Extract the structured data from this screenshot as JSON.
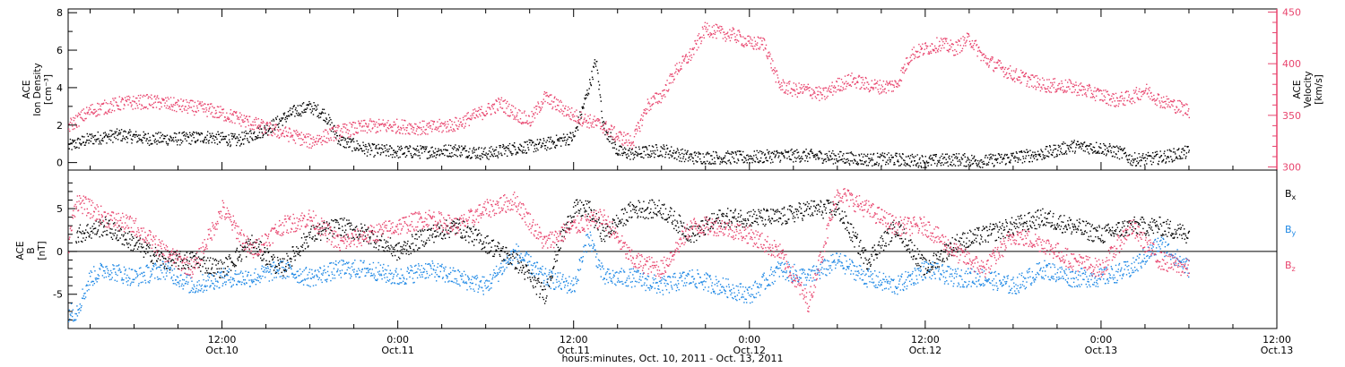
{
  "colors": {
    "density": "#000000",
    "velocity": "#e8456e",
    "bx": "#000000",
    "by": "#1e88e5",
    "bz": "#e8456e",
    "axis": "#000000",
    "right_axis": "#e8456e"
  },
  "footer": {
    "xlabel": "hours:minutes, Oct. 10, 2011 - Oct. 13, 2011"
  },
  "chart_data": [
    {
      "type": "scatter",
      "panel": "top",
      "xlabel": "",
      "xlim_hours": [
        1.5,
        84
      ],
      "x_tick_hours": [
        12,
        24,
        36,
        48,
        60,
        72,
        84
      ],
      "x_tick_labels": [
        {
          "time": "12:00",
          "date": "Oct.10"
        },
        {
          "time": "0:00",
          "date": "Oct.11"
        },
        {
          "time": "12:00",
          "date": "Oct.11"
        },
        {
          "time": "0:00",
          "date": "Oct.12"
        },
        {
          "time": "12:00",
          "date": "Oct.12"
        },
        {
          "time": "0:00",
          "date": "Oct.13"
        },
        {
          "time": "12:00",
          "date": "Oct.13"
        }
      ],
      "ylabel_left": [
        "ACE",
        "Ion Density",
        "[cm⁻³]"
      ],
      "ylim_left": [
        -0.4,
        8.2
      ],
      "yticks_left": [
        "0",
        "2",
        "4",
        "6",
        "8"
      ],
      "ylabel_right": [
        "ACE",
        "Velocity",
        "[km/s]"
      ],
      "ylim_right": [
        297,
        453
      ],
      "yticks_right": [
        "300",
        "350",
        "400",
        "450"
      ],
      "series": [
        {
          "name": "",
          "axis": "left",
          "x_hours": [
            1.5,
            3,
            5,
            7,
            9,
            11,
            13,
            15,
            17,
            18,
            19,
            20,
            22,
            24,
            26,
            28,
            30,
            32,
            34,
            36,
            37,
            37.5,
            38,
            39,
            40,
            42,
            44,
            46,
            48,
            50,
            52,
            54,
            56,
            58,
            60,
            62,
            64,
            66,
            68,
            70,
            72,
            73.5,
            74,
            75,
            76,
            78
          ],
          "values": [
            0.9,
            1.3,
            1.5,
            1.3,
            1.3,
            1.4,
            1.2,
            1.8,
            2.8,
            3.0,
            2.6,
            1.2,
            0.7,
            0.6,
            0.6,
            0.7,
            0.5,
            0.8,
            1.0,
            1.4,
            4.0,
            5.5,
            2.0,
            0.6,
            0.5,
            0.7,
            0.3,
            0.3,
            0.3,
            0.4,
            0.4,
            0.3,
            0.2,
            0.2,
            0.1,
            0.2,
            0.1,
            0.3,
            0.5,
            0.9,
            0.8,
            0.5,
            0.2,
            0.2,
            0.3,
            0.6
          ]
        },
        {
          "name": "",
          "axis": "right",
          "x_hours": [
            1.5,
            3,
            5,
            7,
            9,
            11,
            13,
            15,
            17,
            18,
            20,
            22,
            24,
            26,
            28,
            30,
            31,
            32,
            33,
            34,
            36,
            38,
            39,
            40,
            41,
            42,
            43,
            44,
            45,
            46,
            47,
            48,
            49,
            50,
            51,
            52,
            53,
            54,
            55,
            56,
            57,
            58,
            59,
            60,
            61,
            62,
            63,
            64,
            66,
            68,
            70,
            72,
            73,
            74,
            75,
            76,
            78
          ],
          "values": [
            340,
            355,
            362,
            364,
            360,
            356,
            348,
            338,
            330,
            325,
            335,
            340,
            340,
            338,
            342,
            355,
            362,
            352,
            345,
            368,
            350,
            340,
            330,
            325,
            360,
            370,
            395,
            410,
            435,
            430,
            428,
            420,
            420,
            380,
            375,
            375,
            370,
            380,
            385,
            380,
            378,
            380,
            410,
            415,
            420,
            415,
            425,
            405,
            390,
            380,
            378,
            370,
            365,
            368,
            375,
            365,
            355
          ]
        }
      ]
    },
    {
      "type": "scatter",
      "panel": "bottom",
      "xlim_hours": [
        1.5,
        84
      ],
      "ylabel_left": [
        "ACE",
        "B",
        "[nT]"
      ],
      "ylim_left": [
        -9,
        9.5
      ],
      "yticks_left": [
        "-5",
        "0",
        "5"
      ],
      "legend_position": "right",
      "series": [
        {
          "name": "Bx",
          "name_main": "B",
          "name_sub": "x",
          "x_hours": [
            2,
            4,
            6,
            8,
            10,
            12,
            14,
            16,
            18,
            20,
            22,
            24,
            26,
            28,
            30,
            32,
            34,
            35,
            36,
            37,
            38,
            40,
            42,
            44,
            46,
            48,
            50,
            52,
            54,
            56,
            58,
            60,
            62,
            64,
            66,
            68,
            70,
            72,
            74,
            76,
            78
          ],
          "values": [
            2,
            3,
            1,
            -1,
            -1,
            -2,
            1,
            -2,
            2,
            3,
            2,
            0,
            2,
            3,
            1,
            -1,
            -5,
            1,
            5,
            5,
            2,
            5,
            5,
            2,
            4,
            4,
            4,
            5,
            5,
            -1,
            3,
            -2,
            1,
            2,
            3,
            4,
            3,
            2,
            3,
            3,
            2
          ]
        },
        {
          "name": "By",
          "name_main": "B",
          "name_sub": "y",
          "x_hours": [
            1.5,
            2,
            3,
            4,
            6,
            8,
            10,
            12,
            14,
            16,
            18,
            20,
            22,
            24,
            26,
            28,
            30,
            32,
            34,
            36,
            37,
            38,
            40,
            42,
            44,
            46,
            48,
            50,
            52,
            54,
            56,
            58,
            60,
            62,
            64,
            66,
            68,
            70,
            72,
            74,
            76,
            78
          ],
          "values": [
            -7,
            -7,
            -3,
            -2,
            -3,
            -2,
            -4,
            -3,
            -3,
            -2,
            -3,
            -2,
            -2,
            -3,
            -2,
            -3,
            -4,
            0,
            -3,
            -4,
            2,
            -3,
            -3,
            -4,
            -3,
            -4,
            -5,
            -2,
            -3,
            -1,
            -3,
            -4,
            -2,
            -3,
            -3,
            -4,
            -2,
            -3,
            -3,
            -2,
            1,
            -2
          ]
        },
        {
          "name": "Bz",
          "name_main": "B",
          "name_sub": "z",
          "x_hours": [
            1.5,
            2,
            3,
            4,
            6,
            8,
            10,
            12,
            14,
            16,
            18,
            20,
            22,
            24,
            26,
            28,
            30,
            32,
            34,
            36,
            38,
            40,
            42,
            44,
            46,
            48,
            50,
            52,
            54,
            56,
            58,
            60,
            62,
            64,
            66,
            68,
            70,
            72,
            74,
            76,
            78
          ],
          "values": [
            1,
            6,
            5,
            4,
            3,
            0,
            -2,
            5,
            0,
            3,
            4,
            1,
            2,
            3,
            4,
            3,
            5,
            6,
            1,
            3,
            4,
            -1,
            -2,
            3,
            3,
            2,
            0,
            -6,
            7,
            5,
            3,
            3,
            0,
            -2,
            2,
            1,
            -1,
            -2,
            3,
            -1,
            -2
          ]
        }
      ]
    }
  ]
}
